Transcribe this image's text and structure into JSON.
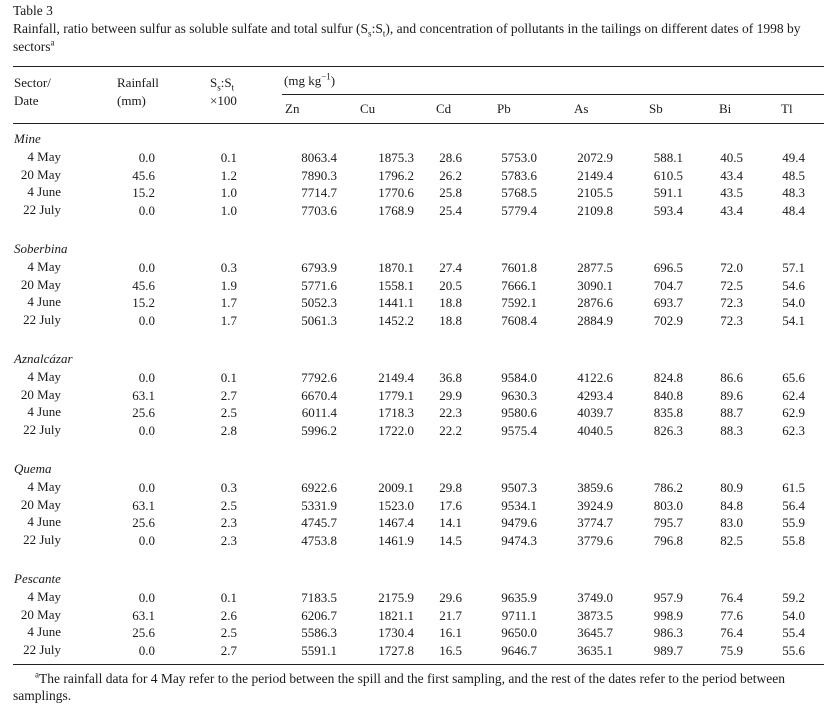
{
  "table_number": "Table 3",
  "caption": {
    "text_before": "Rainfall, ratio between sulfur as soluble sulfate and total sulfur (S",
    "sub1": "s",
    "text_mid": ":S",
    "sub2": "t",
    "text_after": "), and concentration of pollutants in the tailings on different dates of 1998 by sectors",
    "footnote_mark": "a"
  },
  "headers": {
    "sector_date_line1": "Sector/",
    "sector_date_line2": "Date",
    "rainfall_line1": "Rainfall",
    "rainfall_line2": "(mm)",
    "ratio_s": "S",
    "ratio_sub1": "s",
    "ratio_colon": ":S",
    "ratio_sub2": "t",
    "ratio_line2": "×100",
    "unit_prefix": "(mg kg",
    "unit_exp": "−1",
    "unit_suffix": ")",
    "elements": [
      "Zn",
      "Cu",
      "Cd",
      "Pb",
      "As",
      "Sb",
      "Bi",
      "Tl"
    ]
  },
  "sectors": [
    {
      "name": "Mine",
      "rows": [
        {
          "date": "4 May",
          "rain": "0.0",
          "ratio": "0.1",
          "vals": [
            "8063.4",
            "1875.3",
            "28.6",
            "5753.0",
            "2072.9",
            "588.1",
            "40.5",
            "49.4"
          ]
        },
        {
          "date": "20 May",
          "rain": "45.6",
          "ratio": "1.2",
          "vals": [
            "7890.3",
            "1796.2",
            "26.2",
            "5783.6",
            "2149.4",
            "610.5",
            "43.4",
            "48.5"
          ]
        },
        {
          "date": "4 June",
          "rain": "15.2",
          "ratio": "1.0",
          "vals": [
            "7714.7",
            "1770.6",
            "25.8",
            "5768.5",
            "2105.5",
            "591.1",
            "43.5",
            "48.3"
          ]
        },
        {
          "date": "22 July",
          "rain": "0.0",
          "ratio": "1.0",
          "vals": [
            "7703.6",
            "1768.9",
            "25.4",
            "5779.4",
            "2109.8",
            "593.4",
            "43.4",
            "48.4"
          ]
        }
      ]
    },
    {
      "name": "Soberbina",
      "rows": [
        {
          "date": "4 May",
          "rain": "0.0",
          "ratio": "0.3",
          "vals": [
            "6793.9",
            "1870.1",
            "27.4",
            "7601.8",
            "2877.5",
            "696.5",
            "72.0",
            "57.1"
          ]
        },
        {
          "date": "20 May",
          "rain": "45.6",
          "ratio": "1.9",
          "vals": [
            "5771.6",
            "1558.1",
            "20.5",
            "7666.1",
            "3090.1",
            "704.7",
            "72.5",
            "54.6"
          ]
        },
        {
          "date": "4 June",
          "rain": "15.2",
          "ratio": "1.7",
          "vals": [
            "5052.3",
            "1441.1",
            "18.8",
            "7592.1",
            "2876.6",
            "693.7",
            "72.3",
            "54.0"
          ]
        },
        {
          "date": "22 July",
          "rain": "0.0",
          "ratio": "1.7",
          "vals": [
            "5061.3",
            "1452.2",
            "18.8",
            "7608.4",
            "2884.9",
            "702.9",
            "72.3",
            "54.1"
          ]
        }
      ]
    },
    {
      "name": "Aznalcázar",
      "rows": [
        {
          "date": "4 May",
          "rain": "0.0",
          "ratio": "0.1",
          "vals": [
            "7792.6",
            "2149.4",
            "36.8",
            "9584.0",
            "4122.6",
            "824.8",
            "86.6",
            "65.6"
          ]
        },
        {
          "date": "20 May",
          "rain": "63.1",
          "ratio": "2.7",
          "vals": [
            "6670.4",
            "1779.1",
            "29.9",
            "9630.3",
            "4293.4",
            "840.8",
            "89.6",
            "62.4"
          ]
        },
        {
          "date": "4 June",
          "rain": "25.6",
          "ratio": "2.5",
          "vals": [
            "6011.4",
            "1718.3",
            "22.3",
            "9580.6",
            "4039.7",
            "835.8",
            "88.7",
            "62.9"
          ]
        },
        {
          "date": "22 July",
          "rain": "0.0",
          "ratio": "2.8",
          "vals": [
            "5996.2",
            "1722.0",
            "22.2",
            "9575.4",
            "4040.5",
            "826.3",
            "88.3",
            "62.3"
          ]
        }
      ]
    },
    {
      "name": "Quema",
      "rows": [
        {
          "date": "4 May",
          "rain": "0.0",
          "ratio": "0.3",
          "vals": [
            "6922.6",
            "2009.1",
            "29.8",
            "9507.3",
            "3859.6",
            "786.2",
            "80.9",
            "61.5"
          ]
        },
        {
          "date": "20 May",
          "rain": "63.1",
          "ratio": "2.5",
          "vals": [
            "5331.9",
            "1523.0",
            "17.6",
            "9534.1",
            "3924.9",
            "803.0",
            "84.8",
            "56.4"
          ]
        },
        {
          "date": "4 June",
          "rain": "25.6",
          "ratio": "2.3",
          "vals": [
            "4745.7",
            "1467.4",
            "14.1",
            "9479.6",
            "3774.7",
            "795.7",
            "83.0",
            "55.9"
          ]
        },
        {
          "date": "22 July",
          "rain": "0.0",
          "ratio": "2.3",
          "vals": [
            "4753.8",
            "1461.9",
            "14.5",
            "9474.3",
            "3779.6",
            "796.8",
            "82.5",
            "55.8"
          ]
        }
      ]
    },
    {
      "name": "Pescante",
      "rows": [
        {
          "date": "4 May",
          "rain": "0.0",
          "ratio": "0.1",
          "vals": [
            "7183.5",
            "2175.9",
            "29.6",
            "9635.9",
            "3749.0",
            "957.9",
            "76.4",
            "59.2"
          ]
        },
        {
          "date": "20 May",
          "rain": "63.1",
          "ratio": "2.6",
          "vals": [
            "6206.7",
            "1821.1",
            "21.7",
            "9711.1",
            "3873.5",
            "998.9",
            "77.6",
            "54.0"
          ]
        },
        {
          "date": "4 June",
          "rain": "25.6",
          "ratio": "2.5",
          "vals": [
            "5586.3",
            "1730.4",
            "16.1",
            "9650.0",
            "3645.7",
            "986.3",
            "76.4",
            "55.4"
          ]
        },
        {
          "date": "22 July",
          "rain": "0.0",
          "ratio": "2.7",
          "vals": [
            "5591.1",
            "1727.8",
            "16.5",
            "9646.7",
            "3635.1",
            "989.7",
            "75.9",
            "55.6"
          ]
        }
      ]
    }
  ],
  "footnote": {
    "mark": "a",
    "text": "The rainfall data for 4 May refer to the period between the spill and the first sampling, and the rest of the dates refer to the period between samplings."
  }
}
